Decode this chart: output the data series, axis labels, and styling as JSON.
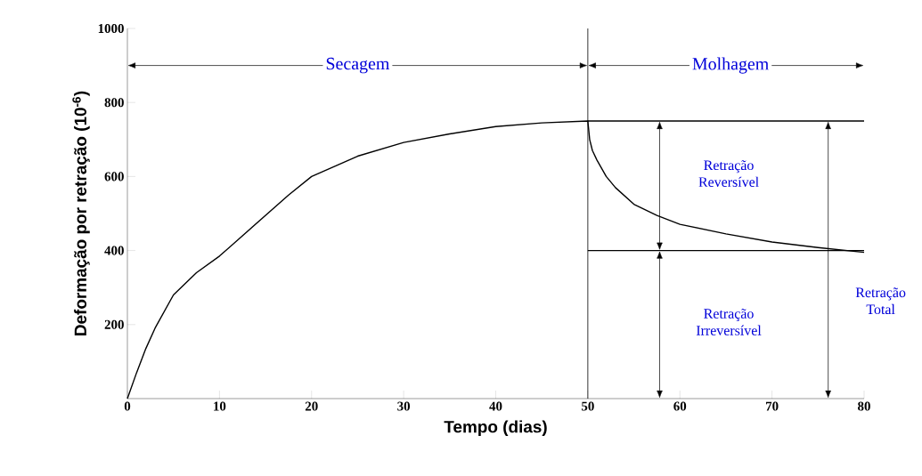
{
  "chart_data": {
    "type": "line",
    "xlabel": "Tempo (dias)",
    "ylabel": "Deformação por retração (10$^{-6}$)",
    "xlim": [
      0,
      80
    ],
    "ylim": [
      0,
      1000
    ],
    "xticks": [
      0,
      10,
      20,
      30,
      40,
      50,
      60,
      70,
      80
    ],
    "yticks": [
      200,
      400,
      600,
      800,
      1000
    ],
    "line_style": "solid",
    "series": [
      {
        "color": "#000000",
        "x": [
          0,
          1,
          2,
          3,
          5,
          7.5,
          10,
          12.5,
          15,
          17.5,
          20,
          25,
          30,
          35,
          40,
          45,
          50,
          50.2,
          50.5,
          51,
          52,
          53,
          55,
          57.5,
          60,
          65,
          70,
          75,
          80
        ],
        "values": [
          0,
          70,
          135,
          190,
          280,
          340,
          385,
          440,
          495,
          550,
          600,
          655,
          692,
          715,
          735,
          745,
          750,
          700,
          670,
          644,
          600,
          570,
          525,
          495,
          471,
          445,
          423,
          408,
          395
        ]
      },
      {
        "color": "#000000",
        "x": [
          50,
          80
        ],
        "values": [
          750,
          750
        ]
      },
      {
        "color": "#000000",
        "x": [
          50,
          80
        ],
        "values": [
          400,
          400
        ]
      }
    ],
    "ref_lines": [
      {
        "axis": "x",
        "value": 50,
        "color": "#000000"
      }
    ],
    "annotations": [
      "Secagem",
      "Molhagem",
      "Retração Reversível",
      "Retração Irreversível",
      "Retração Total"
    ]
  }
}
